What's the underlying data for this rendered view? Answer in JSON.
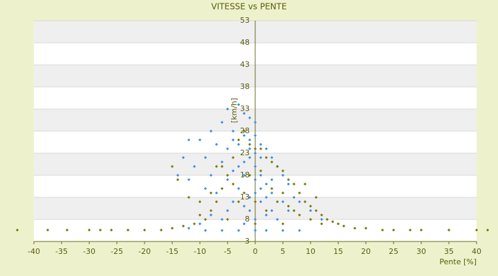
{
  "chart_data": {
    "type": "scatter",
    "title": "VITESSE vs PENTE",
    "x_label": "Pente [%]",
    "y_label": "[km/h]",
    "xlim": [
      -40,
      40
    ],
    "xticks": [
      -40,
      -35,
      -30,
      -25,
      -20,
      -15,
      -10,
      -5,
      0,
      5,
      10,
      15,
      20,
      25,
      30,
      35,
      40
    ],
    "ylim": [
      3,
      53
    ],
    "yticks": [
      3,
      8,
      13,
      18,
      23,
      28,
      33,
      38,
      43,
      48,
      53
    ],
    "grid": true,
    "series": [
      {
        "color": "#3d8fdc",
        "x": [
          -5,
          -3,
          -2,
          -6,
          -4,
          -1,
          0,
          -8,
          -10,
          -12,
          -13,
          -14,
          -11,
          -9,
          -7,
          -5,
          -3,
          -2,
          -1,
          0,
          1,
          2,
          3,
          4,
          5,
          6,
          7,
          8,
          10,
          12,
          -1,
          0,
          1,
          2,
          -2,
          -3,
          -4,
          -5,
          -6,
          -8,
          -10,
          -12,
          0,
          1,
          -1,
          0,
          2,
          3,
          4,
          -2,
          0,
          -3,
          2,
          5,
          -6,
          8,
          -9,
          -1,
          1,
          0,
          -2,
          -4,
          3,
          2,
          -3,
          -5,
          -7,
          -9,
          -12,
          0,
          1,
          3,
          -1,
          -2,
          5,
          6,
          -4,
          -6,
          -8
        ],
        "values": [
          33,
          34,
          32,
          30,
          28,
          31,
          30,
          28,
          26,
          26,
          22,
          18,
          20,
          22,
          25,
          24,
          25,
          27,
          26,
          27,
          25,
          24,
          22,
          20,
          18,
          16,
          13,
          12,
          10,
          8,
          22,
          20,
          18,
          16,
          18,
          15,
          12,
          10,
          8,
          9,
          7,
          6,
          14,
          12,
          10,
          8,
          9,
          10,
          8,
          7,
          5.5,
          5.5,
          5.5,
          5.5,
          5.5,
          5.5,
          5.5,
          24,
          22,
          23,
          21,
          19,
          17,
          13,
          20,
          17,
          14,
          15,
          17,
          17,
          15,
          14,
          13,
          11,
          12,
          10,
          26,
          21,
          18
        ]
      },
      {
        "color": "#7a7a10",
        "x": [
          -43,
          -37.5,
          -34,
          -30,
          -28,
          -26,
          -23,
          -20,
          -17,
          -15,
          -13,
          -11,
          -9,
          -8,
          -7,
          -6,
          -5,
          -4,
          -3,
          -2,
          -1,
          0,
          1,
          2,
          3,
          4,
          5,
          6,
          7,
          8,
          9,
          10,
          11,
          12,
          13,
          14,
          15,
          16,
          18,
          20,
          23,
          25,
          28,
          30,
          35,
          40,
          42,
          -15,
          -14,
          -12,
          -10,
          -8,
          -6,
          -4,
          -2,
          0,
          2,
          4,
          6,
          8,
          10,
          12,
          -10,
          -5,
          0,
          5,
          3,
          5,
          7,
          1,
          -1,
          -3,
          9,
          11,
          -7
        ],
        "values": [
          5.6,
          5.6,
          5.6,
          5.6,
          5.6,
          5.6,
          5.6,
          5.6,
          5.6,
          6,
          6.5,
          7,
          8,
          10,
          12,
          15,
          18,
          22,
          26,
          28,
          25,
          24,
          24,
          22,
          21,
          20,
          19,
          17,
          16,
          14,
          12,
          11,
          10,
          9,
          8,
          7.5,
          7,
          6.5,
          6,
          6,
          5.6,
          5.6,
          5.6,
          5.6,
          5.6,
          5.6,
          5.6,
          20,
          17,
          13,
          12,
          14,
          20,
          16,
          14,
          12,
          10,
          12,
          11,
          9,
          8,
          7,
          9,
          8,
          7,
          7,
          15,
          14,
          10,
          19,
          18,
          12,
          16,
          13,
          20
        ]
      }
    ]
  }
}
